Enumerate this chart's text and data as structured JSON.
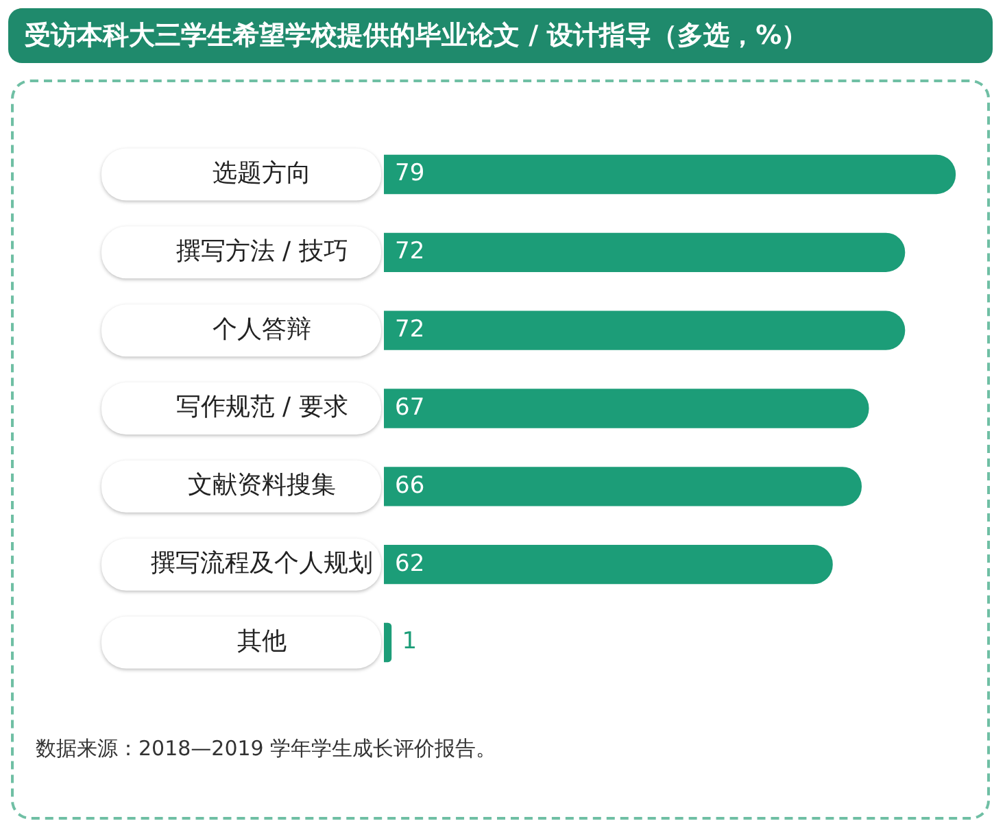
{
  "chart_data": {
    "type": "bar",
    "orientation": "horizontal",
    "title": "受访本科大三学生希望学校提供的毕业论文 / 设计指导（多选，%）",
    "categories": [
      "选题方向",
      "撰写方法 / 技巧",
      "个人答辩",
      "写作规范 / 要求",
      "文献资料搜集",
      "撰写流程及个人规划",
      "其他"
    ],
    "values": [
      79,
      72,
      72,
      67,
      66,
      62,
      1
    ],
    "color": "#1c9d78",
    "data_labels": true,
    "annotations": [
      "数据来源：2018—2019 学年学生成长评价报告。"
    ]
  }
}
